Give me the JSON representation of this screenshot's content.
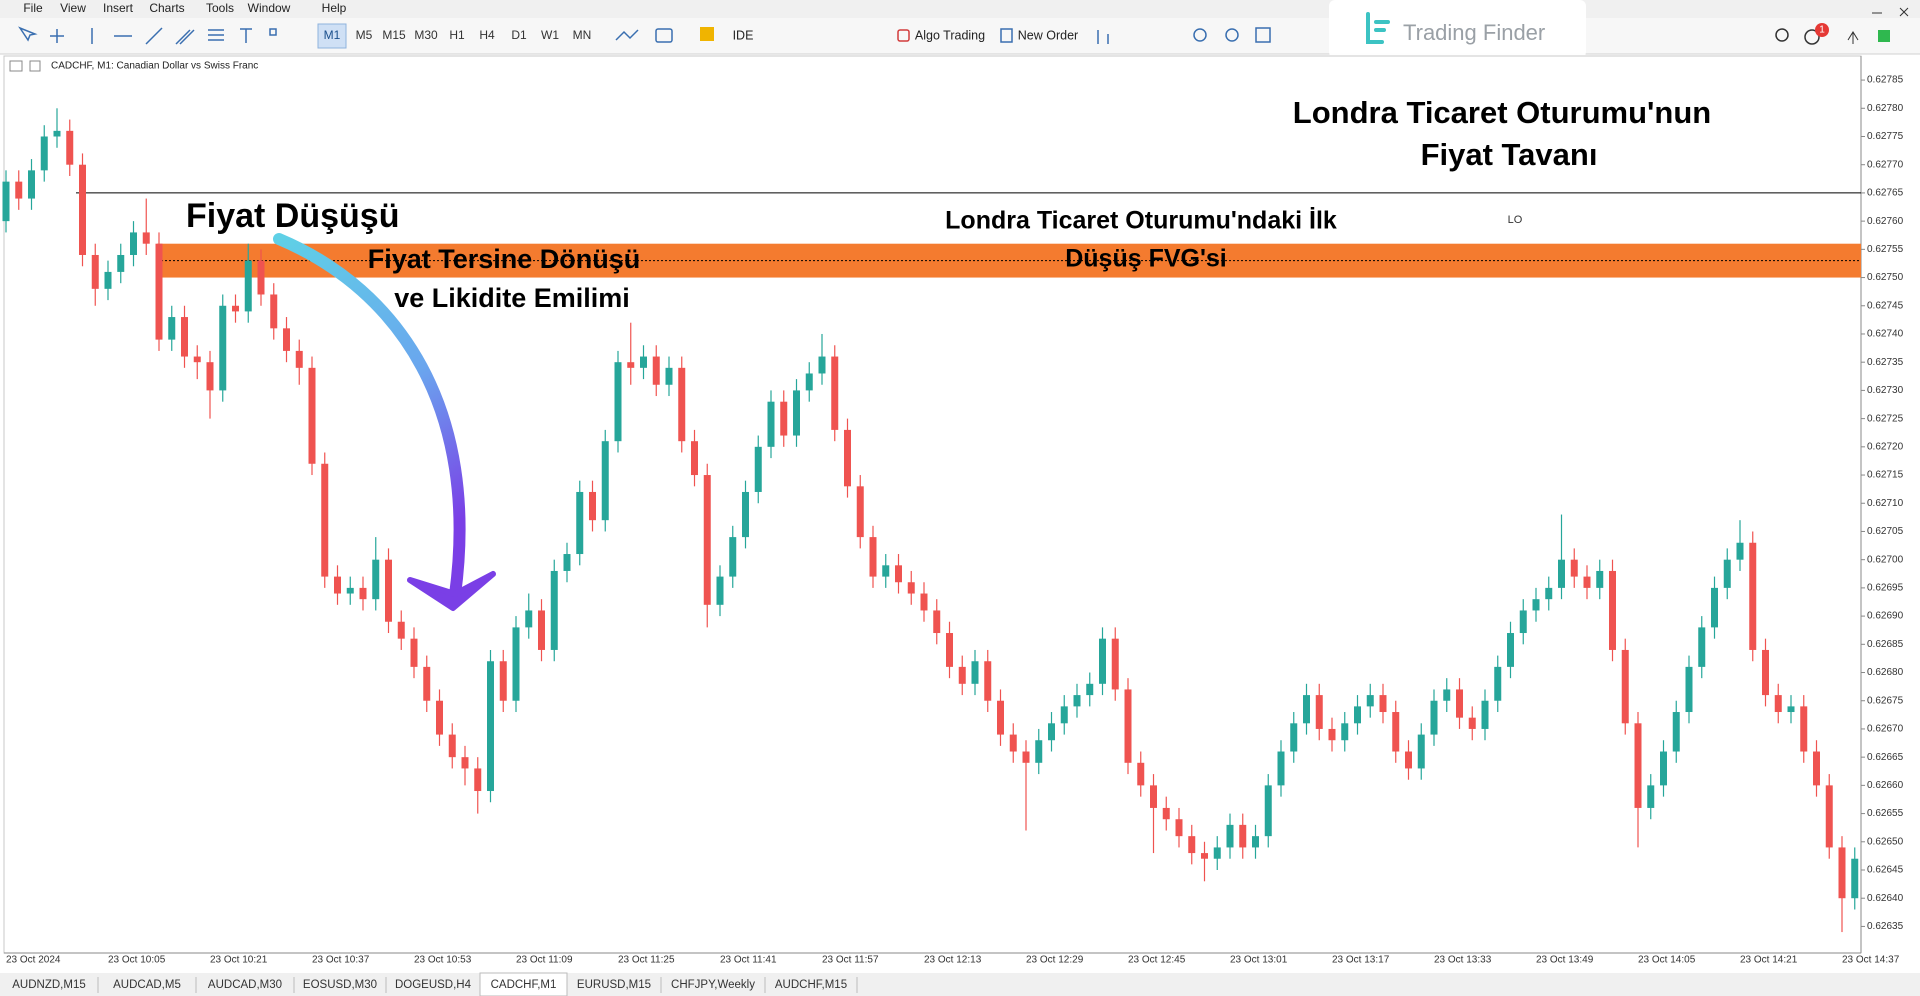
{
  "menu": [
    "File",
    "View",
    "Insert",
    "Charts",
    "Tools",
    "Window",
    "Help"
  ],
  "toolbar": {
    "timeframes": [
      "M1",
      "M5",
      "M15",
      "M30",
      "H1",
      "H4",
      "D1",
      "W1",
      "MN"
    ],
    "active_timeframe": 0,
    "ide": "IDE",
    "algo_trading": "Algo Trading",
    "new_order": "New Order"
  },
  "notifications": 1,
  "logo": "Trading Finder",
  "chart_header": "CADCHF, M1:  Canadian Dollar vs Swiss Franc",
  "tabs": [
    "AUDNZD,M15",
    "AUDCAD,M5",
    "AUDCAD,M30",
    "EOSUSD,M30",
    "DOGEUSD,H4",
    "CADCHF,M1",
    "EURUSD,M15",
    "CHFJPY,Weekly",
    "AUDCHF,M15"
  ],
  "active_tab": 5,
  "chart_data": {
    "type": "candlestick",
    "up_color": "#26a69a",
    "down_color": "#ef5350",
    "categories": [
      "23 Oct 2024",
      null,
      null,
      null,
      null,
      null,
      null,
      null,
      "23 Oct 10:05",
      null,
      null,
      null,
      null,
      null,
      null,
      null,
      "23 Oct 10:21",
      null,
      null,
      null,
      null,
      null,
      null,
      null,
      "23 Oct 10:37",
      null,
      null,
      null,
      null,
      null,
      null,
      null,
      "23 Oct 10:53",
      null,
      null,
      null,
      null,
      null,
      null,
      null,
      "23 Oct 11:09",
      null,
      null,
      null,
      null,
      null,
      null,
      null,
      "23 Oct 11:25",
      null,
      null,
      null,
      null,
      null,
      null,
      null,
      "23 Oct 11:41",
      null,
      null,
      null,
      null,
      null,
      null,
      null,
      "23 Oct 11:57",
      null,
      null,
      null,
      null,
      null,
      null,
      null,
      "23 Oct 12:13",
      null,
      null,
      null,
      null,
      null,
      null,
      null,
      "23 Oct 12:29",
      null,
      null,
      null,
      null,
      null,
      null,
      null,
      "23 Oct 12:45",
      null,
      null,
      null,
      null,
      null,
      null,
      null,
      "23 Oct 13:01",
      null,
      null,
      null,
      null,
      null,
      null,
      null,
      "23 Oct 13:17",
      null,
      null,
      null,
      null,
      null,
      null,
      null,
      "23 Oct 13:33",
      null,
      null,
      null,
      null,
      null,
      null,
      null,
      "23 Oct 13:49",
      null,
      null,
      null,
      null,
      null,
      null,
      null,
      "23 Oct 14:05",
      null,
      null,
      null,
      null,
      null,
      null,
      null,
      "23 Oct 14:21",
      null,
      null,
      null,
      null,
      null,
      null,
      null,
      "23 Oct 14:37",
      null
    ],
    "open": [
      0.6276,
      0.62767,
      0.62764,
      0.62769,
      0.62775,
      0.62776,
      0.6277,
      0.62754,
      0.62748,
      0.62751,
      0.62754,
      0.62758,
      0.62756,
      0.62739,
      0.62743,
      0.62736,
      0.62735,
      0.6273,
      0.62745,
      0.62744,
      0.62753,
      0.62747,
      0.62741,
      0.62737,
      0.62734,
      0.62717,
      0.62697,
      0.62694,
      0.62695,
      0.62693,
      0.627,
      0.62689,
      0.62686,
      0.62681,
      0.62675,
      0.62669,
      0.62665,
      0.62663,
      0.62659,
      0.62682,
      0.62675,
      0.62688,
      0.62691,
      0.62684,
      0.62698,
      0.62701,
      0.62712,
      0.62707,
      0.62721,
      0.62735,
      0.62734,
      0.62736,
      0.62731,
      0.62734,
      0.62721,
      0.62715,
      0.62692,
      0.62697,
      0.62704,
      0.62712,
      0.6272,
      0.62728,
      0.62722,
      0.6273,
      0.62733,
      0.62736,
      0.62723,
      0.62713,
      0.62704,
      0.62697,
      0.62699,
      0.62696,
      0.62694,
      0.62691,
      0.62687,
      0.62681,
      0.62678,
      0.62682,
      0.62675,
      0.62669,
      0.62666,
      0.62664,
      0.62668,
      0.62671,
      0.62674,
      0.62676,
      0.62678,
      0.62686,
      0.62677,
      0.62664,
      0.6266,
      0.62656,
      0.62654,
      0.62651,
      0.62648,
      0.62647,
      0.62649,
      0.62653,
      0.62649,
      0.62651,
      0.6266,
      0.62666,
      0.62671,
      0.62676,
      0.6267,
      0.62668,
      0.62671,
      0.62674,
      0.62676,
      0.62673,
      0.62666,
      0.62663,
      0.62669,
      0.62675,
      0.62677,
      0.62672,
      0.6267,
      0.62675,
      0.62681,
      0.62687,
      0.62691,
      0.62693,
      0.62695,
      0.627,
      0.62697,
      0.62695,
      0.62698,
      0.62684,
      0.62671,
      0.62656,
      0.6266,
      0.62666,
      0.62673,
      0.62681,
      0.62688,
      0.62695,
      0.627,
      0.62703,
      0.62684,
      0.62676,
      0.62673,
      0.62674,
      0.62666,
      0.6266,
      0.62649,
      0.6264
    ],
    "high": [
      0.62769,
      0.62769,
      0.62771,
      0.62777,
      0.6278,
      0.62778,
      0.62772,
      0.62756,
      0.62753,
      0.62756,
      0.6276,
      0.62764,
      0.62758,
      0.62745,
      0.62745,
      0.62738,
      0.62737,
      0.62747,
      0.62747,
      0.62756,
      0.62755,
      0.62749,
      0.62743,
      0.62739,
      0.62736,
      0.62719,
      0.62699,
      0.62697,
      0.62697,
      0.62704,
      0.62702,
      0.62691,
      0.62688,
      0.62683,
      0.62677,
      0.62671,
      0.62667,
      0.62665,
      0.62684,
      0.62684,
      0.6269,
      0.62694,
      0.62693,
      0.627,
      0.62703,
      0.62714,
      0.62714,
      0.62723,
      0.62737,
      0.62742,
      0.62738,
      0.62738,
      0.62736,
      0.62736,
      0.62723,
      0.62717,
      0.62699,
      0.62706,
      0.62714,
      0.62722,
      0.6273,
      0.6273,
      0.62732,
      0.62735,
      0.6274,
      0.62738,
      0.62725,
      0.62715,
      0.62706,
      0.62701,
      0.62701,
      0.62698,
      0.62696,
      0.62693,
      0.62689,
      0.62683,
      0.62684,
      0.62684,
      0.62677,
      0.62671,
      0.62668,
      0.6267,
      0.62673,
      0.62676,
      0.62678,
      0.6268,
      0.62688,
      0.62688,
      0.62679,
      0.62666,
      0.62662,
      0.62658,
      0.62656,
      0.62653,
      0.6265,
      0.62651,
      0.62655,
      0.62655,
      0.62653,
      0.62662,
      0.62668,
      0.62673,
      0.62678,
      0.62678,
      0.62672,
      0.62673,
      0.62676,
      0.62678,
      0.62678,
      0.62675,
      0.62668,
      0.62671,
      0.62677,
      0.62679,
      0.62679,
      0.62674,
      0.62677,
      0.62683,
      0.62689,
      0.62693,
      0.62695,
      0.62697,
      0.62708,
      0.62702,
      0.62699,
      0.627,
      0.627,
      0.62686,
      0.62673,
      0.62662,
      0.62668,
      0.62675,
      0.62683,
      0.6269,
      0.62697,
      0.62702,
      0.62707,
      0.62705,
      0.62686,
      0.62678,
      0.62676,
      0.62676,
      0.62668,
      0.62662,
      0.62651,
      0.62649
    ],
    "low": [
      0.62758,
      0.62762,
      0.62762,
      0.62767,
      0.62773,
      0.62768,
      0.62752,
      0.62745,
      0.62746,
      0.62749,
      0.62752,
      0.62754,
      0.62737,
      0.62737,
      0.62734,
      0.62732,
      0.62725,
      0.62728,
      0.62742,
      0.62742,
      0.62745,
      0.62739,
      0.62735,
      0.62731,
      0.62715,
      0.62695,
      0.62692,
      0.62692,
      0.62691,
      0.62691,
      0.62687,
      0.62684,
      0.62679,
      0.62673,
      0.62667,
      0.62663,
      0.6266,
      0.62655,
      0.62657,
      0.62673,
      0.62673,
      0.62686,
      0.62682,
      0.62682,
      0.62696,
      0.62699,
      0.62705,
      0.62705,
      0.62719,
      0.62731,
      0.62732,
      0.62729,
      0.62729,
      0.62719,
      0.62713,
      0.62688,
      0.6269,
      0.62695,
      0.62702,
      0.6271,
      0.62718,
      0.6272,
      0.6272,
      0.62728,
      0.62731,
      0.62721,
      0.62711,
      0.62702,
      0.62695,
      0.62695,
      0.62694,
      0.62692,
      0.62689,
      0.62685,
      0.62679,
      0.62676,
      0.62676,
      0.62673,
      0.62667,
      0.62664,
      0.62652,
      0.62662,
      0.62666,
      0.62669,
      0.62672,
      0.62674,
      0.62676,
      0.62675,
      0.62662,
      0.62658,
      0.62648,
      0.62652,
      0.62649,
      0.62646,
      0.62643,
      0.62645,
      0.62647,
      0.62647,
      0.62647,
      0.62649,
      0.62658,
      0.62664,
      0.62669,
      0.62668,
      0.62666,
      0.62666,
      0.62669,
      0.62672,
      0.62671,
      0.62664,
      0.62661,
      0.62661,
      0.62667,
      0.62673,
      0.6267,
      0.62668,
      0.62668,
      0.62673,
      0.62679,
      0.62685,
      0.62689,
      0.62691,
      0.62693,
      0.62695,
      0.62693,
      0.62693,
      0.62682,
      0.62669,
      0.62649,
      0.62654,
      0.62658,
      0.62664,
      0.62671,
      0.62679,
      0.62686,
      0.62693,
      0.62698,
      0.62682,
      0.62674,
      0.62671,
      0.62671,
      0.62664,
      0.62658,
      0.62647,
      0.62634,
      0.62638
    ],
    "close": [
      0.62767,
      0.62764,
      0.62769,
      0.62775,
      0.62776,
      0.6277,
      0.62754,
      0.62748,
      0.62751,
      0.62754,
      0.62758,
      0.62756,
      0.62739,
      0.62743,
      0.62736,
      0.62735,
      0.6273,
      0.62745,
      0.62744,
      0.62753,
      0.62747,
      0.62741,
      0.62737,
      0.62734,
      0.62717,
      0.62697,
      0.62694,
      0.62695,
      0.62693,
      0.627,
      0.62689,
      0.62686,
      0.62681,
      0.62675,
      0.62669,
      0.62665,
      0.62663,
      0.62659,
      0.62682,
      0.62675,
      0.62688,
      0.62691,
      0.62684,
      0.62698,
      0.62701,
      0.62712,
      0.62707,
      0.62721,
      0.62735,
      0.62734,
      0.62736,
      0.62731,
      0.62734,
      0.62721,
      0.62715,
      0.62692,
      0.62697,
      0.62704,
      0.62712,
      0.6272,
      0.62728,
      0.62722,
      0.6273,
      0.62733,
      0.62736,
      0.62723,
      0.62713,
      0.62704,
      0.62697,
      0.62699,
      0.62696,
      0.62694,
      0.62691,
      0.62687,
      0.62681,
      0.62678,
      0.62682,
      0.62675,
      0.62669,
      0.62666,
      0.62664,
      0.62668,
      0.62671,
      0.62674,
      0.62676,
      0.62678,
      0.62686,
      0.62677,
      0.62664,
      0.6266,
      0.62656,
      0.62654,
      0.62651,
      0.62648,
      0.62647,
      0.62649,
      0.62653,
      0.62649,
      0.62651,
      0.6266,
      0.62666,
      0.62671,
      0.62676,
      0.6267,
      0.62668,
      0.62671,
      0.62674,
      0.62676,
      0.62673,
      0.62666,
      0.62663,
      0.62669,
      0.62675,
      0.62677,
      0.62672,
      0.6267,
      0.62675,
      0.62681,
      0.62687,
      0.62691,
      0.62693,
      0.62695,
      0.627,
      0.62697,
      0.62695,
      0.62698,
      0.62684,
      0.62671,
      0.62656,
      0.6266,
      0.62666,
      0.62673,
      0.62681,
      0.62688,
      0.62695,
      0.627,
      0.62703,
      0.62684,
      0.62676,
      0.62673,
      0.62674,
      0.62666,
      0.6266,
      0.62649,
      0.6264,
      0.62647
    ],
    "ylim": [
      0.62631,
      0.62789
    ],
    "yticks": [
      0.62635,
      {
        "value": 0.6264,
        "label": "0.62640"
      },
      0.62645,
      {
        "value": 0.6265,
        "label": "0.62650"
      },
      0.62655,
      {
        "value": 0.6266,
        "label": "0.62660"
      },
      0.62665,
      {
        "value": 0.6267,
        "label": "0.62670"
      },
      0.62675,
      {
        "value": 0.6268,
        "label": "0.62680"
      },
      0.62685,
      {
        "value": 0.6269,
        "label": "0.62690"
      },
      0.62695,
      {
        "value": 0.627,
        "label": "0.62700"
      },
      0.62705,
      {
        "value": 0.6271,
        "label": "0.62710"
      },
      0.62715,
      {
        "value": 0.6272,
        "label": "0.62720"
      },
      0.62725,
      {
        "value": 0.6273,
        "label": "0.62730"
      },
      0.62735,
      {
        "value": 0.6274,
        "label": "0.62740"
      },
      0.62745,
      {
        "value": 0.6275,
        "label": "0.62750"
      },
      0.62755,
      {
        "value": 0.6276,
        "label": "0.62760"
      },
      0.62765,
      {
        "value": 0.6277,
        "label": "0.62770"
      },
      0.62775,
      {
        "value": 0.6278,
        "label": "0.62780"
      },
      0.62785
    ],
    "session_high": {
      "value": 0.62765,
      "label": "LO"
    },
    "fvg": {
      "high": 0.62756,
      "low": 0.6275,
      "mid": 0.62753,
      "color": "#f47b2f"
    },
    "annotations": {
      "ceiling_line1": "Londra Ticaret Oturumu'nun",
      "ceiling_line2": "Fiyat Tavanı",
      "price_drop": "Fiyat Düşüşü",
      "reversal_line1": "Fiyat Tersine Dönüşü",
      "reversal_line2": "ve Likidite Emilimi",
      "fvg_line1": "Londra Ticaret Oturumu'ndaki İlk",
      "fvg_line2": "Düşüş FVG'si"
    }
  }
}
